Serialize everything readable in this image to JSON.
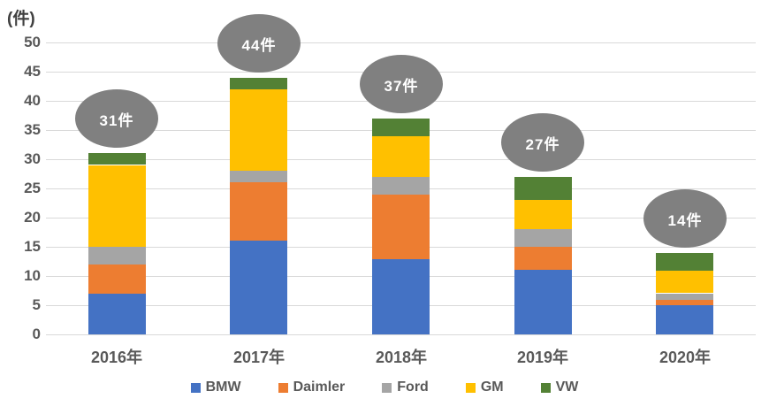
{
  "chart_data": {
    "type": "bar",
    "stacked": true,
    "title": "(件)",
    "categories": [
      "2016年",
      "2017年",
      "2018年",
      "2019年",
      "2020年"
    ],
    "series": [
      {
        "name": "BMW",
        "color": "#4472C4",
        "values": [
          7,
          16,
          13,
          11,
          5
        ]
      },
      {
        "name": "Daimler",
        "color": "#ED7D31",
        "values": [
          5,
          10,
          11,
          4,
          1
        ]
      },
      {
        "name": "Ford",
        "color": "#A5A5A5",
        "values": [
          3,
          2,
          3,
          3,
          1
        ]
      },
      {
        "name": "GM",
        "color": "#FFC000",
        "values": [
          14,
          14,
          7,
          5,
          4
        ]
      },
      {
        "name": "VW",
        "color": "#538135",
        "values": [
          2,
          2,
          3,
          4,
          3
        ]
      }
    ],
    "totals": [
      31,
      44,
      37,
      27,
      14
    ],
    "total_labels": [
      "31件",
      "44件",
      "37件",
      "27件",
      "14件"
    ],
    "y_ticks": [
      0,
      5,
      10,
      15,
      20,
      25,
      30,
      35,
      40,
      45,
      50
    ],
    "ylim": [
      0,
      50
    ],
    "xlabel": "",
    "ylabel": "(件)",
    "grid": true,
    "legend_position": "bottom",
    "gridline_color": "#D9D9D9",
    "axis_text_color": "#595959",
    "annotation_fill_color": "#808080",
    "annotation_text_color": "#FFFFFF"
  }
}
